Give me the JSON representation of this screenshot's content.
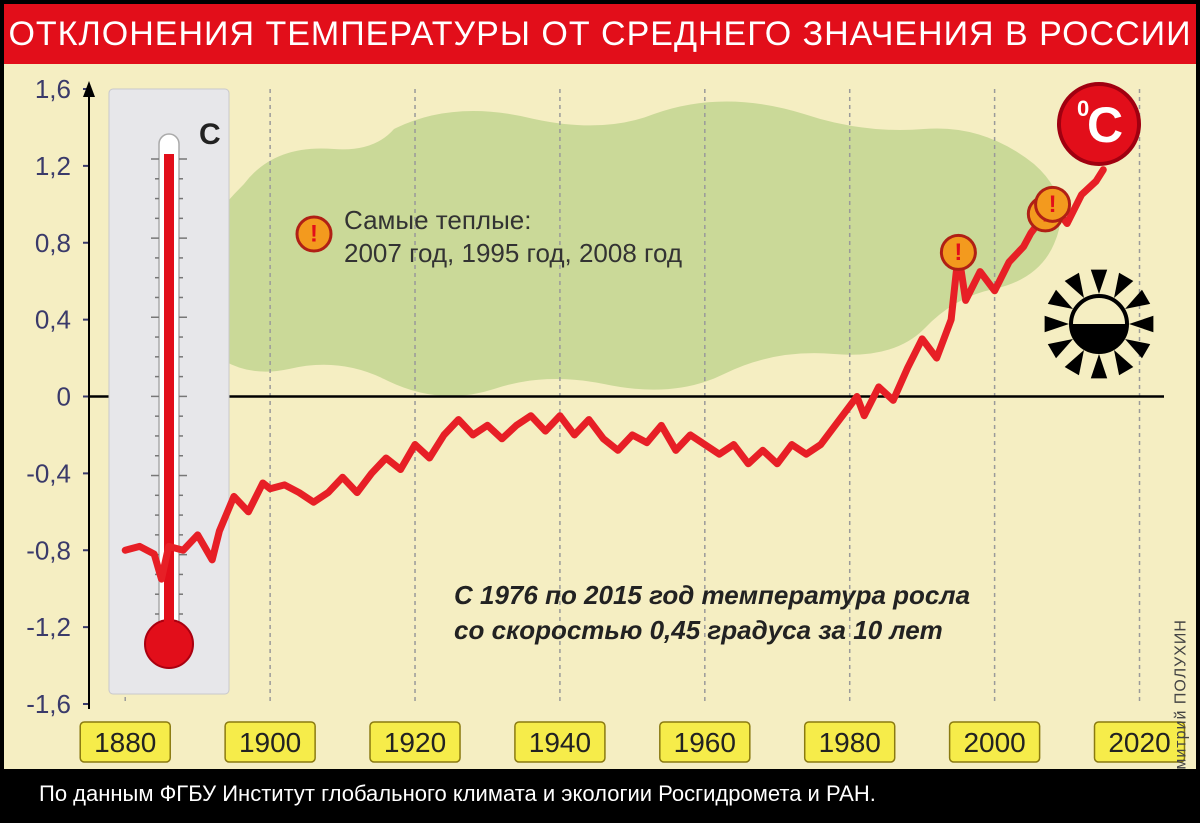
{
  "header": {
    "title": "ОТКЛОНЕНИЯ ТЕМПЕРАТУРЫ ОТ СРЕДНЕГО ЗНАЧЕНИЯ В РОССИИ"
  },
  "footer": {
    "source": "По данным ФГБУ Институт глобального климата и экологии Росгидромета и РАН."
  },
  "author": "Дмитрий ПОЛУХИН",
  "badge": {
    "text": "С",
    "superscript": "0",
    "bg": "#e20e1a",
    "fg": "#ffffff"
  },
  "annotation_warm": {
    "line1": "Самые теплые:",
    "line2": "2007 год, 1995 год, 2008 год"
  },
  "annotation_trend": {
    "line1": "С 1976 по 2015 год температура росла",
    "line2": "со скоростью 0,45 градуса за 10 лет"
  },
  "thermometer_unit": "C",
  "chart": {
    "type": "line",
    "background_color": "#f5eec2",
    "line_color": "#e71f26",
    "line_width": 7,
    "zero_line_color": "#000000",
    "grid_color": "#9a9a9a",
    "grid_dash": "4 4",
    "x_min": 1875,
    "x_max": 2022,
    "y_min": -1.6,
    "y_max": 1.6,
    "y_ticks": [
      1.6,
      1.2,
      0.8,
      0.4,
      0,
      -0.4,
      -0.8,
      -1.2,
      -1.6
    ],
    "y_tick_labels": [
      "1,6",
      "1,2",
      "0,8",
      "0,4",
      "0",
      "-0,4",
      "-0,8",
      "-1,2",
      "-1,6"
    ],
    "y_tick_color": "#3a3a6a",
    "x_ticks": [
      1880,
      1900,
      1920,
      1940,
      1960,
      1980,
      2000,
      2020
    ],
    "x_label_bg": "#f6ec4a",
    "x_label_border": "#8a7a10",
    "x_label_fontsize": 28,
    "y_label_fontsize": 26,
    "map_color": "#c5d693",
    "marker_points": [
      {
        "x": 1995,
        "y": 0.75
      },
      {
        "x": 2007,
        "y": 0.95
      },
      {
        "x": 2008,
        "y": 1.0
      }
    ],
    "marker_fill": "#f39a1e",
    "marker_stroke": "#b02015",
    "marker_bang": "#e20e1a",
    "data": [
      {
        "x": 1880,
        "y": -0.8
      },
      {
        "x": 1882,
        "y": -0.78
      },
      {
        "x": 1884,
        "y": -0.82
      },
      {
        "x": 1885,
        "y": -0.95
      },
      {
        "x": 1886,
        "y": -0.78
      },
      {
        "x": 1888,
        "y": -0.8
      },
      {
        "x": 1890,
        "y": -0.72
      },
      {
        "x": 1892,
        "y": -0.85
      },
      {
        "x": 1893,
        "y": -0.7
      },
      {
        "x": 1895,
        "y": -0.52
      },
      {
        "x": 1897,
        "y": -0.6
      },
      {
        "x": 1899,
        "y": -0.45
      },
      {
        "x": 1900,
        "y": -0.48
      },
      {
        "x": 1902,
        "y": -0.46
      },
      {
        "x": 1904,
        "y": -0.5
      },
      {
        "x": 1906,
        "y": -0.55
      },
      {
        "x": 1908,
        "y": -0.5
      },
      {
        "x": 1910,
        "y": -0.42
      },
      {
        "x": 1912,
        "y": -0.5
      },
      {
        "x": 1914,
        "y": -0.4
      },
      {
        "x": 1916,
        "y": -0.32
      },
      {
        "x": 1918,
        "y": -0.38
      },
      {
        "x": 1920,
        "y": -0.25
      },
      {
        "x": 1922,
        "y": -0.32
      },
      {
        "x": 1924,
        "y": -0.2
      },
      {
        "x": 1926,
        "y": -0.12
      },
      {
        "x": 1928,
        "y": -0.2
      },
      {
        "x": 1930,
        "y": -0.15
      },
      {
        "x": 1932,
        "y": -0.22
      },
      {
        "x": 1934,
        "y": -0.15
      },
      {
        "x": 1936,
        "y": -0.1
      },
      {
        "x": 1938,
        "y": -0.18
      },
      {
        "x": 1940,
        "y": -0.1
      },
      {
        "x": 1942,
        "y": -0.2
      },
      {
        "x": 1944,
        "y": -0.12
      },
      {
        "x": 1946,
        "y": -0.22
      },
      {
        "x": 1948,
        "y": -0.28
      },
      {
        "x": 1950,
        "y": -0.2
      },
      {
        "x": 1952,
        "y": -0.24
      },
      {
        "x": 1954,
        "y": -0.15
      },
      {
        "x": 1956,
        "y": -0.28
      },
      {
        "x": 1958,
        "y": -0.2
      },
      {
        "x": 1960,
        "y": -0.25
      },
      {
        "x": 1962,
        "y": -0.3
      },
      {
        "x": 1964,
        "y": -0.25
      },
      {
        "x": 1966,
        "y": -0.35
      },
      {
        "x": 1968,
        "y": -0.28
      },
      {
        "x": 1970,
        "y": -0.35
      },
      {
        "x": 1972,
        "y": -0.25
      },
      {
        "x": 1974,
        "y": -0.3
      },
      {
        "x": 1976,
        "y": -0.25
      },
      {
        "x": 1978,
        "y": -0.15
      },
      {
        "x": 1980,
        "y": -0.05
      },
      {
        "x": 1981,
        "y": 0.0
      },
      {
        "x": 1982,
        "y": -0.1
      },
      {
        "x": 1984,
        "y": 0.05
      },
      {
        "x": 1986,
        "y": -0.02
      },
      {
        "x": 1988,
        "y": 0.15
      },
      {
        "x": 1990,
        "y": 0.3
      },
      {
        "x": 1992,
        "y": 0.2
      },
      {
        "x": 1994,
        "y": 0.4
      },
      {
        "x": 1995,
        "y": 0.75
      },
      {
        "x": 1996,
        "y": 0.5
      },
      {
        "x": 1998,
        "y": 0.65
      },
      {
        "x": 2000,
        "y": 0.55
      },
      {
        "x": 2002,
        "y": 0.7
      },
      {
        "x": 2004,
        "y": 0.78
      },
      {
        "x": 2005,
        "y": 0.85
      },
      {
        "x": 2007,
        "y": 0.95
      },
      {
        "x": 2008,
        "y": 1.0
      },
      {
        "x": 2010,
        "y": 0.9
      },
      {
        "x": 2012,
        "y": 1.05
      },
      {
        "x": 2014,
        "y": 1.12
      },
      {
        "x": 2015,
        "y": 1.18
      }
    ]
  }
}
